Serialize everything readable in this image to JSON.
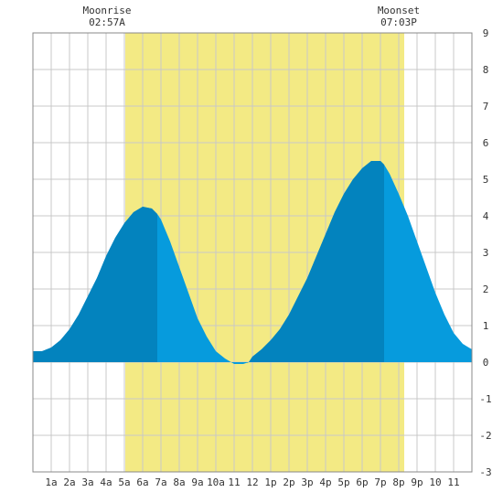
{
  "annotations": {
    "moonrise": {
      "label": "Moonrise",
      "time": "02:57A"
    },
    "moonset": {
      "label": "Moonset",
      "time": "07:03P"
    }
  },
  "colors": {
    "daylight": "#f3ea84",
    "tide_rising": "#0383be",
    "tide_falling": "#069bdd",
    "grid": "#c8c8c8",
    "frame": "#888888"
  },
  "chart_data": {
    "type": "area",
    "title": "",
    "xlabel": "",
    "ylabel": "",
    "xlim": [
      0,
      24
    ],
    "ylim": [
      -3,
      9
    ],
    "x_tick_labels": [
      "1a",
      "2a",
      "3a",
      "4a",
      "5a",
      "6a",
      "7a",
      "8a",
      "9a",
      "10a",
      "11",
      "12",
      "1p",
      "2p",
      "3p",
      "4p",
      "5p",
      "6p",
      "7p",
      "8p",
      "9p",
      "10",
      "11"
    ],
    "y_tick_labels": [
      "-3",
      "-2",
      "-1",
      "0",
      "1",
      "2",
      "3",
      "4",
      "5",
      "6",
      "7",
      "8",
      "9"
    ],
    "grid": true,
    "daylight_span_hours": [
      5.05,
      20.3
    ],
    "series": [
      {
        "x": [
          0,
          0.5,
          1,
          1.5,
          2,
          2.5,
          3,
          3.5,
          4,
          4.5,
          5,
          5.5,
          6,
          6.5,
          6.8,
          7,
          7.5,
          8,
          8.5,
          9,
          9.5,
          10,
          10.5,
          11,
          11.5,
          11.8,
          12,
          12.5,
          13,
          13.5,
          14,
          14.5,
          15,
          15.5,
          16,
          16.5,
          17,
          17.5,
          18,
          18.5,
          19,
          19.2,
          19.5,
          20,
          20.5,
          21,
          21.5,
          22,
          22.5,
          23,
          23.5,
          24
        ],
        "y": [
          0.3,
          0.3,
          0.4,
          0.6,
          0.9,
          1.3,
          1.8,
          2.3,
          2.9,
          3.4,
          3.8,
          4.1,
          4.25,
          4.2,
          4.05,
          3.9,
          3.3,
          2.6,
          1.9,
          1.2,
          0.7,
          0.3,
          0.1,
          -0.05,
          -0.05,
          0.0,
          0.15,
          0.35,
          0.6,
          0.9,
          1.3,
          1.8,
          2.3,
          2.9,
          3.5,
          4.1,
          4.6,
          5.0,
          5.3,
          5.5,
          5.5,
          5.4,
          5.15,
          4.6,
          4.0,
          3.3,
          2.6,
          1.9,
          1.3,
          0.8,
          0.5,
          0.35
        ],
        "falling_from_hours": [
          6.8,
          19.2
        ]
      }
    ]
  }
}
